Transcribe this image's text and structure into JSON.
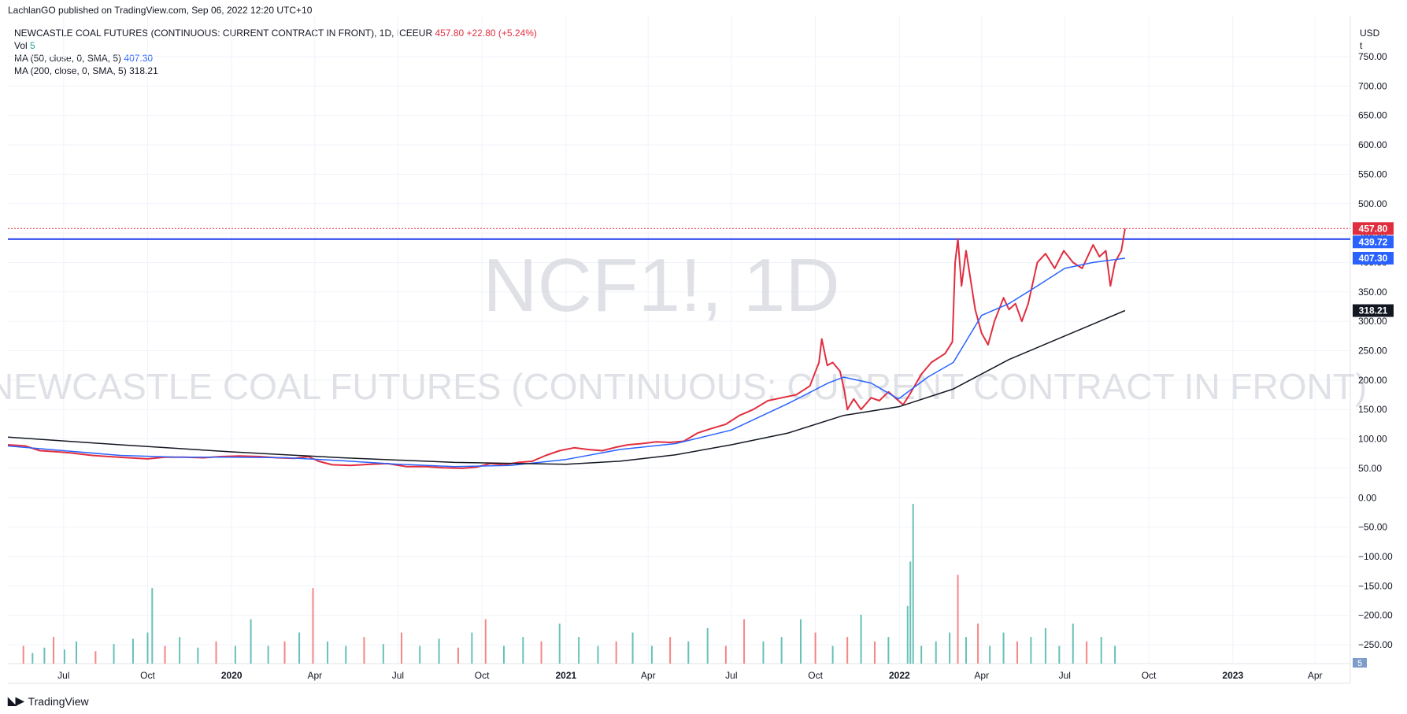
{
  "header": {
    "published": "LachlanGO published on TradingView.com, Sep 06, 2022 12:20 UTC+10"
  },
  "legend": {
    "symbol_line": "NEWCASTLE COAL FUTURES (CONTINUOUS: CURRENT CONTRACT IN FRONT), 1D, ICEEUR",
    "last": "457.80",
    "change": "+22.80 (+5.24%)",
    "vol_label": "Vol",
    "vol_value": "5",
    "ma50_label": "MA (50, close, 0, SMA, 5)",
    "ma50_value": "407.30",
    "ma200_label": "MA (200, close, 0, SMA, 5)",
    "ma200_value": "318.21"
  },
  "watermark": {
    "ticker": "NCF1!, 1D",
    "name": "NEWCASTLE COAL FUTURES (CONTINUOUS: CURRENT CONTRACT IN FRONT)"
  },
  "axis": {
    "currency": "USD",
    "unit": "t"
  },
  "footer": {
    "brand": "TradingView"
  },
  "colors": {
    "price": "#e12e3f",
    "ma50": "#2962ff",
    "ma200": "#131722",
    "hline": "#1e3cf0",
    "vol_up": "#26a69a",
    "vol_down": "#ef5350",
    "grid": "#f0f3fa"
  },
  "chart_data": {
    "type": "line",
    "ylim": [
      -275,
      770
    ],
    "y_ticks": [
      750,
      700,
      650,
      600,
      550,
      500,
      450,
      400,
      350,
      300,
      250,
      200,
      150,
      100,
      50,
      0,
      -50,
      -100,
      -150,
      -200,
      -250
    ],
    "y_tick_labels": [
      "750.00",
      "700.00",
      "650.00",
      "600.00",
      "550.00",
      "500.00",
      "450.00",
      "400.00",
      "350.00",
      "300.00",
      "250.00",
      "200.00",
      "150.00",
      "100.00",
      "50.00",
      "0.00",
      "−50.00",
      "−100.00",
      "−150.00",
      "−200.00",
      "−250.00"
    ],
    "x_range": [
      "2019-05-01",
      "2023-05-01"
    ],
    "x_ticks": [
      {
        "date": "2019-07-01",
        "label": "Jul",
        "bold": false
      },
      {
        "date": "2019-10-01",
        "label": "Oct",
        "bold": false
      },
      {
        "date": "2020-01-01",
        "label": "2020",
        "bold": true
      },
      {
        "date": "2020-04-01",
        "label": "Apr",
        "bold": false
      },
      {
        "date": "2020-07-01",
        "label": "Jul",
        "bold": false
      },
      {
        "date": "2020-10-01",
        "label": "Oct",
        "bold": false
      },
      {
        "date": "2021-01-01",
        "label": "2021",
        "bold": true
      },
      {
        "date": "2021-04-01",
        "label": "Apr",
        "bold": false
      },
      {
        "date": "2021-07-01",
        "label": "Jul",
        "bold": false
      },
      {
        "date": "2021-10-01",
        "label": "Oct",
        "bold": false
      },
      {
        "date": "2022-01-01",
        "label": "2022",
        "bold": true
      },
      {
        "date": "2022-04-01",
        "label": "Apr",
        "bold": false
      },
      {
        "date": "2022-07-01",
        "label": "Jul",
        "bold": false
      },
      {
        "date": "2022-10-01",
        "label": "Oct",
        "bold": false
      },
      {
        "date": "2023-01-01",
        "label": "2023",
        "bold": true
      },
      {
        "date": "2023-04-01",
        "label": "Apr",
        "bold": false
      }
    ],
    "horizontal_line": 439.72,
    "price_labels": [
      {
        "value": 457.8,
        "text": "457.80",
        "color": "#e12e3f"
      },
      {
        "value": 439.72,
        "text": "439.72",
        "color": "#2962ff"
      },
      {
        "value": 407.3,
        "text": "407.30",
        "color": "#2962ff"
      },
      {
        "value": 318.21,
        "text": "318.21",
        "color": "#131722"
      }
    ],
    "volume_label": {
      "text": "5",
      "color": "#7e9cc9"
    },
    "series": [
      {
        "name": "NEWCASTLE COAL FUTURES (CONTINUOUS: CURRENT CONTRACT IN FRONT)",
        "color": "#e12e3f",
        "points": [
          [
            "2019-05-01",
            90
          ],
          [
            "2019-05-20",
            88
          ],
          [
            "2019-06-05",
            80
          ],
          [
            "2019-06-25",
            78
          ],
          [
            "2019-07-10",
            76
          ],
          [
            "2019-08-01",
            72
          ],
          [
            "2019-08-20",
            70
          ],
          [
            "2019-09-10",
            68
          ],
          [
            "2019-10-01",
            66
          ],
          [
            "2019-10-20",
            69
          ],
          [
            "2019-11-10",
            69
          ],
          [
            "2019-12-01",
            68
          ],
          [
            "2019-12-20",
            70
          ],
          [
            "2020-01-10",
            71
          ],
          [
            "2020-02-01",
            70
          ],
          [
            "2020-02-20",
            68
          ],
          [
            "2020-03-10",
            67
          ],
          [
            "2020-03-25",
            70
          ],
          [
            "2020-04-05",
            62
          ],
          [
            "2020-04-20",
            56
          ],
          [
            "2020-05-10",
            55
          ],
          [
            "2020-06-01",
            57
          ],
          [
            "2020-06-20",
            58
          ],
          [
            "2020-07-10",
            53
          ],
          [
            "2020-08-01",
            53
          ],
          [
            "2020-08-20",
            51
          ],
          [
            "2020-09-10",
            50
          ],
          [
            "2020-09-25",
            52
          ],
          [
            "2020-10-10",
            58
          ],
          [
            "2020-10-25",
            56
          ],
          [
            "2020-11-10",
            60
          ],
          [
            "2020-11-25",
            62
          ],
          [
            "2020-12-10",
            72
          ],
          [
            "2020-12-25",
            80
          ],
          [
            "2021-01-10",
            85
          ],
          [
            "2021-01-25",
            82
          ],
          [
            "2021-02-10",
            80
          ],
          [
            "2021-02-25",
            86
          ],
          [
            "2021-03-10",
            90
          ],
          [
            "2021-03-25",
            92
          ],
          [
            "2021-04-10",
            95
          ],
          [
            "2021-04-25",
            94
          ],
          [
            "2021-05-10",
            96
          ],
          [
            "2021-05-25",
            110
          ],
          [
            "2021-06-10",
            118
          ],
          [
            "2021-06-25",
            125
          ],
          [
            "2021-07-10",
            140
          ],
          [
            "2021-07-25",
            150
          ],
          [
            "2021-08-10",
            165
          ],
          [
            "2021-08-25",
            170
          ],
          [
            "2021-09-10",
            175
          ],
          [
            "2021-09-25",
            190
          ],
          [
            "2021-10-05",
            230
          ],
          [
            "2021-10-08",
            270
          ],
          [
            "2021-10-14",
            225
          ],
          [
            "2021-10-20",
            230
          ],
          [
            "2021-10-28",
            215
          ],
          [
            "2021-11-02",
            180
          ],
          [
            "2021-11-05",
            150
          ],
          [
            "2021-11-12",
            168
          ],
          [
            "2021-11-20",
            150
          ],
          [
            "2021-12-01",
            170
          ],
          [
            "2021-12-10",
            165
          ],
          [
            "2021-12-20",
            180
          ],
          [
            "2021-12-31",
            165
          ],
          [
            "2022-01-05",
            158
          ],
          [
            "2022-01-12",
            175
          ],
          [
            "2022-01-25",
            210
          ],
          [
            "2022-02-05",
            230
          ],
          [
            "2022-02-20",
            245
          ],
          [
            "2022-02-28",
            265
          ],
          [
            "2022-03-03",
            400
          ],
          [
            "2022-03-06",
            440
          ],
          [
            "2022-03-10",
            360
          ],
          [
            "2022-03-15",
            420
          ],
          [
            "2022-03-25",
            320
          ],
          [
            "2022-04-01",
            280
          ],
          [
            "2022-04-08",
            260
          ],
          [
            "2022-04-15",
            300
          ],
          [
            "2022-04-25",
            340
          ],
          [
            "2022-05-01",
            320
          ],
          [
            "2022-05-08",
            330
          ],
          [
            "2022-05-15",
            300
          ],
          [
            "2022-05-22",
            330
          ],
          [
            "2022-06-01",
            400
          ],
          [
            "2022-06-10",
            415
          ],
          [
            "2022-06-20",
            390
          ],
          [
            "2022-06-30",
            420
          ],
          [
            "2022-07-10",
            400
          ],
          [
            "2022-07-20",
            390
          ],
          [
            "2022-08-01",
            430
          ],
          [
            "2022-08-08",
            410
          ],
          [
            "2022-08-15",
            420
          ],
          [
            "2022-08-20",
            360
          ],
          [
            "2022-08-25",
            400
          ],
          [
            "2022-09-01",
            420
          ],
          [
            "2022-09-05",
            457.8
          ]
        ]
      },
      {
        "name": "MA (50, close, 0, SMA, 5)",
        "color": "#2962ff",
        "points": [
          [
            "2019-05-01",
            88
          ],
          [
            "2019-07-01",
            80
          ],
          [
            "2019-09-01",
            72
          ],
          [
            "2019-11-01",
            69
          ],
          [
            "2020-01-01",
            69
          ],
          [
            "2020-03-01",
            68
          ],
          [
            "2020-05-01",
            63
          ],
          [
            "2020-07-01",
            57
          ],
          [
            "2020-09-01",
            53
          ],
          [
            "2020-11-01",
            55
          ],
          [
            "2021-01-01",
            65
          ],
          [
            "2021-03-01",
            82
          ],
          [
            "2021-05-01",
            92
          ],
          [
            "2021-07-01",
            115
          ],
          [
            "2021-09-01",
            160
          ],
          [
            "2021-10-15",
            195
          ],
          [
            "2021-11-01",
            205
          ],
          [
            "2021-12-01",
            195
          ],
          [
            "2021-12-31",
            168
          ],
          [
            "2022-02-01",
            205
          ],
          [
            "2022-03-01",
            230
          ],
          [
            "2022-04-01",
            310
          ],
          [
            "2022-05-01",
            330
          ],
          [
            "2022-06-01",
            360
          ],
          [
            "2022-07-01",
            390
          ],
          [
            "2022-08-01",
            400
          ],
          [
            "2022-09-05",
            407.3
          ]
        ]
      },
      {
        "name": "MA (200, close, 0, SMA, 5)",
        "color": "#131722",
        "points": [
          [
            "2019-05-01",
            103
          ],
          [
            "2019-09-01",
            90
          ],
          [
            "2020-01-01",
            78
          ],
          [
            "2020-05-01",
            68
          ],
          [
            "2020-09-01",
            60
          ],
          [
            "2021-01-01",
            57
          ],
          [
            "2021-03-01",
            62
          ],
          [
            "2021-05-01",
            73
          ],
          [
            "2021-07-01",
            90
          ],
          [
            "2021-09-01",
            110
          ],
          [
            "2021-11-01",
            140
          ],
          [
            "2022-01-01",
            155
          ],
          [
            "2022-03-01",
            185
          ],
          [
            "2022-05-01",
            235
          ],
          [
            "2022-07-01",
            275
          ],
          [
            "2022-09-05",
            318.21
          ]
        ]
      }
    ],
    "volume": [
      [
        "2019-05-18",
        20,
        "d"
      ],
      [
        "2019-05-28",
        12,
        "u"
      ],
      [
        "2019-06-10",
        18,
        "u"
      ],
      [
        "2019-06-20",
        30,
        "d"
      ],
      [
        "2019-07-02",
        16,
        "u"
      ],
      [
        "2019-07-15",
        25,
        "u"
      ],
      [
        "2019-08-05",
        14,
        "d"
      ],
      [
        "2019-08-25",
        22,
        "u"
      ],
      [
        "2019-09-15",
        28,
        "u"
      ],
      [
        "2019-10-01",
        35,
        "u"
      ],
      [
        "2019-10-06",
        85,
        "u"
      ],
      [
        "2019-10-20",
        20,
        "d"
      ],
      [
        "2019-11-05",
        30,
        "u"
      ],
      [
        "2019-11-25",
        18,
        "u"
      ],
      [
        "2019-12-15",
        25,
        "d"
      ],
      [
        "2020-01-05",
        20,
        "u"
      ],
      [
        "2020-01-22",
        50,
        "u"
      ],
      [
        "2020-02-10",
        20,
        "u"
      ],
      [
        "2020-02-28",
        25,
        "d"
      ],
      [
        "2020-03-15",
        35,
        "u"
      ],
      [
        "2020-03-30",
        85,
        "d"
      ],
      [
        "2020-04-15",
        25,
        "u"
      ],
      [
        "2020-05-05",
        20,
        "u"
      ],
      [
        "2020-05-25",
        30,
        "d"
      ],
      [
        "2020-06-15",
        22,
        "u"
      ],
      [
        "2020-07-05",
        35,
        "d"
      ],
      [
        "2020-07-25",
        20,
        "u"
      ],
      [
        "2020-08-15",
        28,
        "u"
      ],
      [
        "2020-09-05",
        18,
        "d"
      ],
      [
        "2020-09-20",
        35,
        "u"
      ],
      [
        "2020-10-05",
        50,
        "d"
      ],
      [
        "2020-10-25",
        20,
        "u"
      ],
      [
        "2020-11-15",
        30,
        "u"
      ],
      [
        "2020-12-05",
        25,
        "d"
      ],
      [
        "2020-12-25",
        45,
        "u"
      ],
      [
        "2021-01-15",
        30,
        "u"
      ],
      [
        "2021-02-05",
        20,
        "u"
      ],
      [
        "2021-02-25",
        25,
        "d"
      ],
      [
        "2021-03-15",
        35,
        "u"
      ],
      [
        "2021-04-05",
        20,
        "u"
      ],
      [
        "2021-04-25",
        30,
        "d"
      ],
      [
        "2021-05-15",
        25,
        "u"
      ],
      [
        "2021-06-05",
        40,
        "u"
      ],
      [
        "2021-06-25",
        20,
        "d"
      ],
      [
        "2021-07-15",
        50,
        "d"
      ],
      [
        "2021-08-05",
        25,
        "u"
      ],
      [
        "2021-08-25",
        30,
        "u"
      ],
      [
        "2021-09-15",
        50,
        "u"
      ],
      [
        "2021-10-01",
        35,
        "d"
      ],
      [
        "2021-10-20",
        20,
        "u"
      ],
      [
        "2021-11-05",
        30,
        "d"
      ],
      [
        "2021-11-20",
        55,
        "u"
      ],
      [
        "2021-12-05",
        25,
        "d"
      ],
      [
        "2021-12-20",
        30,
        "u"
      ],
      [
        "2022-01-10",
        65,
        "u"
      ],
      [
        "2022-01-13",
        115,
        "u"
      ],
      [
        "2022-01-16",
        180,
        "u"
      ],
      [
        "2022-01-25",
        20,
        "u"
      ],
      [
        "2022-02-10",
        25,
        "u"
      ],
      [
        "2022-02-25",
        35,
        "u"
      ],
      [
        "2022-03-06",
        100,
        "d"
      ],
      [
        "2022-03-15",
        30,
        "u"
      ],
      [
        "2022-03-28",
        45,
        "d"
      ],
      [
        "2022-04-10",
        20,
        "u"
      ],
      [
        "2022-04-25",
        35,
        "u"
      ],
      [
        "2022-05-10",
        25,
        "d"
      ],
      [
        "2022-05-25",
        30,
        "u"
      ],
      [
        "2022-06-10",
        40,
        "u"
      ],
      [
        "2022-06-25",
        20,
        "u"
      ],
      [
        "2022-07-10",
        45,
        "u"
      ],
      [
        "2022-07-25",
        25,
        "d"
      ],
      [
        "2022-08-10",
        30,
        "u"
      ],
      [
        "2022-08-25",
        20,
        "u"
      ]
    ]
  }
}
